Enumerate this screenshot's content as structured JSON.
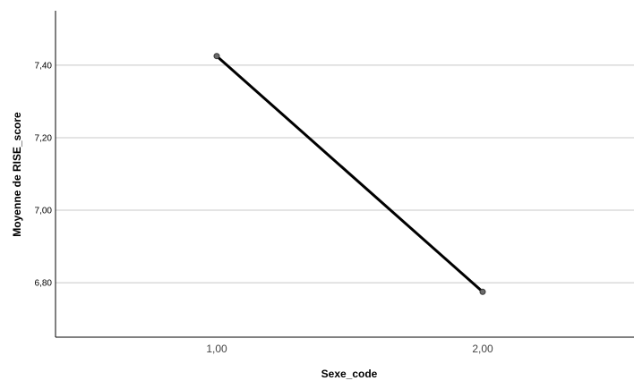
{
  "chart_data": {
    "type": "line",
    "x": [
      "1,00",
      "2,00"
    ],
    "values": [
      7.425,
      6.775
    ],
    "xlabel": "Sexe_code",
    "ylabel": "Moyenne de RISE_score",
    "yticks": [
      6.8,
      7.0,
      7.2,
      7.4
    ],
    "ytick_labels": [
      "6,80",
      "7,00",
      "7,20",
      "7,40"
    ],
    "ylim": [
      6.65,
      7.55
    ],
    "grid": true,
    "legend": "none",
    "colors": {
      "line": "#000000",
      "marker": "#6b6b6b",
      "grid": "#c8c8c8"
    }
  }
}
